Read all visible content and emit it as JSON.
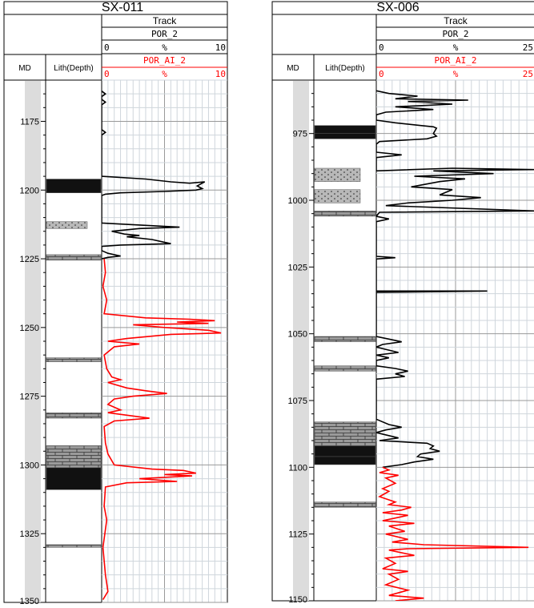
{
  "header_labels": {
    "track": "Track",
    "md": "MD",
    "lith": "Lith(Depth)",
    "curve_black": "POR_2",
    "curve_red": "POR_AI_2",
    "unit": "%"
  },
  "colors": {
    "por": "#000000",
    "por_ai": "#ff0000",
    "grid_major": "#999999",
    "grid_minor": "#cfd6dc",
    "md_band": "#dcdcdc",
    "coal": "#111111",
    "limestone": "#9a9a9a",
    "sandstone": "#b8b8b8"
  },
  "chart_data": [
    {
      "type": "line",
      "well": "SX-011",
      "depth_range": [
        1160,
        1350
      ],
      "depth_ticks": [
        1175,
        1200,
        1225,
        1250,
        1275,
        1300,
        1325,
        1350
      ],
      "depth_tick_labels": [
        "1175",
        "1200",
        "1225",
        "1250",
        "1275",
        "1300",
        "1325",
        "1350"
      ],
      "x_range": [
        0,
        10
      ],
      "x_tick_labels": [
        "0",
        "%",
        "10"
      ],
      "lithology": [
        {
          "type": "coal",
          "top": 1196,
          "base": 1201
        },
        {
          "type": "sandstone",
          "top": 1211.5,
          "base": 1214
        },
        {
          "type": "limestone",
          "top": 1223.5,
          "base": 1225.5
        },
        {
          "type": "limestone",
          "top": 1261,
          "base": 1262.5
        },
        {
          "type": "limestone",
          "top": 1281,
          "base": 1283
        },
        {
          "type": "limestone",
          "top": 1293,
          "base": 1301
        },
        {
          "type": "coal",
          "top": 1301,
          "base": 1309
        },
        {
          "type": "limestone",
          "top": 1329,
          "base": 1330
        }
      ],
      "series": [
        {
          "key": "POR_2",
          "points": [
            [
              0,
              1164
            ],
            [
              0.3,
              1165
            ],
            [
              0,
              1166
            ],
            [
              0,
              1167
            ],
            [
              0.3,
              1168
            ],
            [
              0,
              1169
            ],
            [
              0,
              1178
            ],
            [
              0.3,
              1179
            ],
            [
              0,
              1180
            ],
            [
              0,
              1195
            ],
            [
              3.5,
              1196
            ],
            [
              5.5,
              1197
            ],
            [
              7.0,
              1197.5
            ],
            [
              8.2,
              1197
            ],
            [
              7.6,
              1198.5
            ],
            [
              8.0,
              1199.5
            ],
            [
              7.5,
              1200
            ],
            [
              5.0,
              1200.5
            ],
            [
              1.5,
              1201
            ],
            [
              0.3,
              1201.5
            ],
            [
              0,
              1202
            ],
            [
              0,
              1212
            ],
            [
              6.2,
              1213.5
            ],
            [
              3.0,
              1214
            ],
            [
              0.8,
              1215
            ],
            [
              1.8,
              1216
            ],
            [
              3.0,
              1216.5
            ],
            [
              2.0,
              1217
            ],
            [
              4.0,
              1218
            ],
            [
              5.5,
              1219.5
            ],
            [
              1.5,
              1220
            ],
            [
              0,
              1220.5
            ],
            [
              0,
              1222
            ],
            [
              0.5,
              1223
            ],
            [
              1.5,
              1224
            ],
            [
              0.5,
              1224.5
            ],
            [
              0,
              1225
            ]
          ]
        },
        {
          "key": "POR_AI_2",
          "points": [
            [
              0.2,
              1225
            ],
            [
              0.3,
              1230
            ],
            [
              0.1,
              1235
            ],
            [
              0.4,
              1240
            ],
            [
              0.2,
              1245
            ],
            [
              3.5,
              1246.5
            ],
            [
              7.0,
              1247
            ],
            [
              9.0,
              1247.5
            ],
            [
              6.0,
              1248
            ],
            [
              8.5,
              1248.5
            ],
            [
              2.5,
              1249
            ],
            [
              5.0,
              1250
            ],
            [
              8.5,
              1251
            ],
            [
              9.5,
              1252
            ],
            [
              5.5,
              1252.5
            ],
            [
              2.0,
              1254
            ],
            [
              0.5,
              1255
            ],
            [
              3.0,
              1256
            ],
            [
              1.0,
              1257
            ],
            [
              0.2,
              1260
            ],
            [
              0.4,
              1265
            ],
            [
              0.8,
              1268
            ],
            [
              1.5,
              1269
            ],
            [
              0.5,
              1270
            ],
            [
              2.0,
              1272
            ],
            [
              3.5,
              1273
            ],
            [
              5.2,
              1274
            ],
            [
              2.5,
              1275
            ],
            [
              1.0,
              1276
            ],
            [
              0.5,
              1278
            ],
            [
              1.5,
              1280
            ],
            [
              0.5,
              1281
            ],
            [
              3.8,
              1283
            ],
            [
              1.0,
              1284
            ],
            [
              0.2,
              1286
            ],
            [
              0.3,
              1292
            ],
            [
              0.5,
              1296
            ],
            [
              1.0,
              1300
            ],
            [
              4.0,
              1301.5
            ],
            [
              6.5,
              1302
            ],
            [
              7.5,
              1303
            ],
            [
              5.0,
              1303.5
            ],
            [
              7.2,
              1304
            ],
            [
              3.0,
              1305
            ],
            [
              6.0,
              1306
            ],
            [
              2.0,
              1306.5
            ],
            [
              0.3,
              1308
            ],
            [
              0.2,
              1315
            ],
            [
              0.4,
              1320
            ],
            [
              0.1,
              1330
            ],
            [
              0.3,
              1340
            ],
            [
              0.5,
              1346
            ],
            [
              0.1,
              1349
            ]
          ]
        }
      ]
    },
    {
      "type": "line",
      "well": "SX-006",
      "depth_range": [
        955,
        1150
      ],
      "depth_ticks": [
        975,
        1000,
        1025,
        1050,
        1075,
        1100,
        1125,
        1150
      ],
      "depth_tick_labels": [
        "975",
        "1000",
        "1025",
        "1050",
        "1075",
        "1100",
        "1125",
        "1150"
      ],
      "x_range": [
        0,
        25
      ],
      "x_tick_labels": [
        "0",
        "%",
        "25"
      ],
      "lithology": [
        {
          "type": "coal",
          "top": 972,
          "base": 975
        },
        {
          "type": "coal",
          "top": 975,
          "base": 977
        },
        {
          "type": "sandstone",
          "top": 988,
          "base": 993
        },
        {
          "type": "sandstone",
          "top": 996,
          "base": 1001
        },
        {
          "type": "limestone",
          "top": 1004,
          "base": 1006
        },
        {
          "type": "limestone",
          "top": 1051,
          "base": 1053
        },
        {
          "type": "limestone",
          "top": 1062,
          "base": 1064
        },
        {
          "type": "limestone",
          "top": 1083,
          "base": 1092
        },
        {
          "type": "coal",
          "top": 1092,
          "base": 1096
        },
        {
          "type": "coal",
          "top": 1096,
          "base": 1099
        },
        {
          "type": "limestone",
          "top": 1113,
          "base": 1115
        }
      ],
      "series": [
        {
          "key": "POR_2",
          "points": [
            [
              0,
              959
            ],
            [
              2.0,
              960
            ],
            [
              6.5,
              961
            ],
            [
              3.0,
              962
            ],
            [
              14.5,
              962.5
            ],
            [
              5.0,
              963
            ],
            [
              12.0,
              964
            ],
            [
              3.0,
              965
            ],
            [
              9.0,
              966
            ],
            [
              1.5,
              967
            ],
            [
              0,
              968
            ],
            [
              0,
              970
            ],
            [
              3.0,
              971
            ],
            [
              7.0,
              972
            ],
            [
              9.0,
              972.5
            ],
            [
              9.5,
              973
            ],
            [
              9.0,
              975
            ],
            [
              9.5,
              976
            ],
            [
              8.0,
              977
            ],
            [
              0.5,
              978
            ],
            [
              0,
              979
            ],
            [
              0,
              982
            ],
            [
              4.0,
              983
            ],
            [
              0,
              984
            ],
            [
              0,
              989
            ],
            [
              12.0,
              988
            ],
            [
              30.0,
              988.5
            ],
            [
              9.0,
              989
            ],
            [
              18.5,
              990
            ],
            [
              6.0,
              991
            ],
            [
              14.0,
              992
            ],
            [
              10.0,
              993
            ],
            [
              5.5,
              995
            ],
            [
              12.0,
              996
            ],
            [
              10.0,
              998
            ],
            [
              16.5,
              999
            ],
            [
              12.0,
              1000
            ],
            [
              5.0,
              1001
            ],
            [
              1.5,
              1002
            ],
            [
              37.0,
              1004
            ],
            [
              0.5,
              1004.5
            ],
            [
              0,
              1006
            ],
            [
              2.0,
              1007
            ],
            [
              0,
              1008
            ],
            [
              0,
              1021
            ],
            [
              3.0,
              1021.5
            ],
            [
              0,
              1022
            ],
            [
              0,
              1034
            ],
            [
              17.5,
              1034
            ],
            [
              0,
              1034.5
            ],
            [
              0,
              1051
            ],
            [
              2.0,
              1052
            ],
            [
              4.0,
              1053
            ],
            [
              1.0,
              1054
            ],
            [
              0,
              1055
            ],
            [
              3.5,
              1057
            ],
            [
              0,
              1058
            ],
            [
              2.0,
              1059
            ],
            [
              0,
              1060
            ],
            [
              0,
              1062
            ],
            [
              3.0,
              1063
            ],
            [
              5.0,
              1064
            ],
            [
              3.0,
              1065
            ],
            [
              4.5,
              1066
            ],
            [
              0,
              1067
            ],
            [
              0,
              1082
            ],
            [
              2.0,
              1084
            ],
            [
              4.0,
              1085
            ],
            [
              1.5,
              1086
            ],
            [
              0,
              1087
            ],
            [
              3.5,
              1089
            ],
            [
              0.5,
              1090
            ],
            [
              8.0,
              1091
            ],
            [
              9.0,
              1092
            ],
            [
              8.5,
              1093
            ],
            [
              10.0,
              1094
            ],
            [
              7.0,
              1095
            ],
            [
              6.5,
              1096
            ],
            [
              9.0,
              1097
            ],
            [
              6.0,
              1098
            ],
            [
              4.0,
              1099
            ],
            [
              1.0,
              1100
            ]
          ]
        },
        {
          "key": "POR_AI_2",
          "points": [
            [
              1.0,
              1100
            ],
            [
              2.0,
              1101
            ],
            [
              0.5,
              1102
            ],
            [
              3.5,
              1103
            ],
            [
              1.5,
              1104
            ],
            [
              3.0,
              1106
            ],
            [
              1.0,
              1108
            ],
            [
              2.0,
              1109
            ],
            [
              0.5,
              1111
            ],
            [
              3.0,
              1113
            ],
            [
              2.0,
              1114
            ],
            [
              5.5,
              1115
            ],
            [
              4.0,
              1116
            ],
            [
              1.0,
              1117
            ],
            [
              5.0,
              1118
            ],
            [
              3.0,
              1119
            ],
            [
              1.0,
              1120
            ],
            [
              6.0,
              1121
            ],
            [
              2.0,
              1122
            ],
            [
              4.5,
              1124
            ],
            [
              1.5,
              1125
            ],
            [
              5.0,
              1127
            ],
            [
              2.5,
              1128
            ],
            [
              7.5,
              1129
            ],
            [
              24.0,
              1130
            ],
            [
              5.0,
              1130.5
            ],
            [
              2.0,
              1131
            ],
            [
              6.0,
              1133
            ],
            [
              1.5,
              1134
            ],
            [
              3.0,
              1136
            ],
            [
              1.0,
              1138
            ],
            [
              5.0,
              1139
            ],
            [
              2.0,
              1140
            ],
            [
              3.5,
              1142
            ],
            [
              1.5,
              1144
            ],
            [
              5.0,
              1146
            ],
            [
              2.0,
              1148
            ],
            [
              7.5,
              1149
            ],
            [
              3.0,
              1150
            ]
          ]
        }
      ]
    }
  ]
}
